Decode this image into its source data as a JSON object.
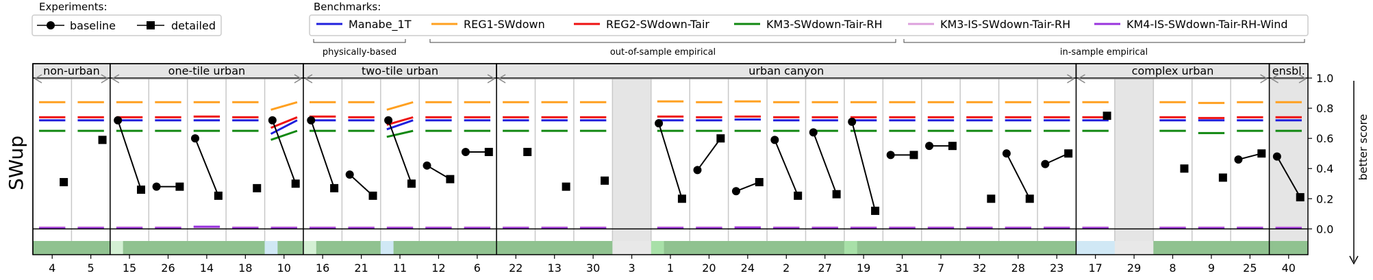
{
  "chart_data": {
    "type": "scatter",
    "ylabel": "SWup",
    "right_label": "better score",
    "ylim": [
      -0.08,
      1.0
    ],
    "yticks": [
      "1.0",
      "0.8",
      "0.6",
      "0.4",
      "0.2",
      "0.0"
    ],
    "ytick_values": [
      1.0,
      0.8,
      0.6,
      0.4,
      0.2,
      0.0
    ],
    "legend": {
      "experiments_title": "Experiments:",
      "experiments": [
        {
          "name": "baseline",
          "marker": "circle"
        },
        {
          "name": "detailed",
          "marker": "square"
        }
      ],
      "benchmarks_title": "Benchmarks:",
      "benchmarks": [
        {
          "name": "Manabe_1T",
          "color": "#1f1fdd"
        },
        {
          "name": "REG1-SWdown",
          "color": "#ffa020"
        },
        {
          "name": "REG2-SWdown-Tair",
          "color": "#ee1111"
        },
        {
          "name": "KM3-SWdown-Tair-RH",
          "color": "#118811"
        },
        {
          "name": "KM3-IS-SWdown-Tair-RH",
          "color": "#dda0dd"
        },
        {
          "name": "KM4-IS-SWdown-Tair-RH-Wind",
          "color": "#9933dd"
        }
      ],
      "benchmark_groups": [
        "physically-based",
        "out-of-sample empirical",
        "in-sample empirical"
      ]
    },
    "groups": [
      {
        "label": "non-urban",
        "start": 0,
        "end": 2
      },
      {
        "label": "one-tile urban",
        "start": 2,
        "end": 7
      },
      {
        "label": "two-tile urban",
        "start": 7,
        "end": 12
      },
      {
        "label": "urban canyon",
        "start": 12,
        "end": 27
      },
      {
        "label": "complex urban",
        "start": 27,
        "end": 32
      },
      {
        "label": "ensbl.",
        "start": 32,
        "end": 33
      }
    ],
    "sites": [
      {
        "id": "4",
        "baseline": null,
        "detailed": 0.31,
        "bench": [
          0.72,
          0.84,
          0.74,
          0.65,
          0.01,
          0.005
        ],
        "grey": false,
        "strip": [
          "#90c290"
        ]
      },
      {
        "id": "5",
        "baseline": null,
        "detailed": 0.59,
        "bench": [
          0.72,
          0.84,
          0.74,
          0.65,
          0.01,
          0.005
        ],
        "grey": false,
        "strip": [
          "#90c290"
        ]
      },
      {
        "id": "15",
        "baseline": 0.72,
        "detailed": 0.26,
        "bench": [
          0.72,
          0.84,
          0.74,
          0.65,
          0.01,
          0.005
        ],
        "grey": false,
        "strip": [
          "#d4f0d4",
          "#90c290",
          "#90c290"
        ]
      },
      {
        "id": "26",
        "baseline": 0.28,
        "detailed": 0.28,
        "bench": [
          0.72,
          0.84,
          0.74,
          0.65,
          0.01,
          0.005
        ],
        "grey": false,
        "strip": [
          "#90c290"
        ]
      },
      {
        "id": "14",
        "baseline": 0.6,
        "detailed": 0.22,
        "bench": [
          0.72,
          0.84,
          0.745,
          0.65,
          0.012,
          0.015
        ],
        "grey": false,
        "strip": [
          "#90c290"
        ]
      },
      {
        "id": "18",
        "baseline": null,
        "detailed": 0.27,
        "bench": [
          0.72,
          0.84,
          0.74,
          0.65,
          0.01,
          0.005
        ],
        "grey": false,
        "strip": [
          "#90c290"
        ]
      },
      {
        "id": "10",
        "baseline": 0.72,
        "detailed": 0.3,
        "bench": [
          [
            0.63,
            0.72
          ],
          [
            0.79,
            0.84
          ],
          [
            0.67,
            0.74
          ],
          [
            0.59,
            0.65
          ],
          0.01,
          0.005
        ],
        "grey": false,
        "strip": [
          "#d0e8f5",
          "#90c290",
          "#90c290"
        ]
      },
      {
        "id": "16",
        "baseline": 0.72,
        "detailed": 0.27,
        "bench": [
          0.72,
          0.84,
          0.745,
          0.65,
          0.01,
          0.005
        ],
        "grey": false,
        "strip": [
          "#d4f0d4",
          "#90c290",
          "#90c290"
        ]
      },
      {
        "id": "21",
        "baseline": 0.36,
        "detailed": 0.22,
        "bench": [
          0.72,
          0.84,
          0.74,
          0.65,
          0.01,
          0.005
        ],
        "grey": false,
        "strip": [
          "#90c290"
        ]
      },
      {
        "id": "11",
        "baseline": 0.72,
        "detailed": 0.3,
        "bench": [
          [
            0.66,
            0.72
          ],
          [
            0.79,
            0.84
          ],
          [
            0.69,
            0.74
          ],
          [
            0.61,
            0.65
          ],
          0.01,
          0.005
        ],
        "grey": false,
        "strip": [
          "#d0e8f5",
          "#90c290",
          "#90c290"
        ]
      },
      {
        "id": "12",
        "baseline": 0.42,
        "detailed": 0.33,
        "bench": [
          0.72,
          0.84,
          0.74,
          0.65,
          0.01,
          0.005
        ],
        "grey": false,
        "strip": [
          "#90c290"
        ]
      },
      {
        "id": "6",
        "baseline": 0.51,
        "detailed": 0.51,
        "bench": [
          0.72,
          0.84,
          0.74,
          0.65,
          0.01,
          0.005
        ],
        "grey": false,
        "strip": [
          "#90c290"
        ]
      },
      {
        "id": "22",
        "baseline": null,
        "detailed": 0.51,
        "bench": [
          0.72,
          0.84,
          0.74,
          0.65,
          0.01,
          0.005
        ],
        "grey": false,
        "strip": [
          "#90c290"
        ]
      },
      {
        "id": "13",
        "baseline": null,
        "detailed": 0.28,
        "bench": [
          0.72,
          0.84,
          0.74,
          0.65,
          0.01,
          0.005
        ],
        "grey": false,
        "strip": [
          "#90c290"
        ]
      },
      {
        "id": "30",
        "baseline": null,
        "detailed": 0.32,
        "bench": [
          0.72,
          0.84,
          0.74,
          0.65,
          0.01,
          0.005
        ],
        "grey": false,
        "strip": [
          "#90c290"
        ]
      },
      {
        "id": "3",
        "baseline": null,
        "detailed": null,
        "bench": null,
        "grey": true,
        "strip": [
          "#e8e8e8"
        ]
      },
      {
        "id": "1",
        "baseline": 0.7,
        "detailed": 0.2,
        "bench": [
          0.72,
          0.845,
          0.745,
          0.65,
          0.01,
          0.005
        ],
        "grey": false,
        "strip": [
          "#a8e0a8",
          "#90c290",
          "#90c290"
        ]
      },
      {
        "id": "20",
        "baseline": 0.39,
        "detailed": 0.6,
        "bench": [
          0.72,
          0.84,
          0.74,
          0.65,
          0.01,
          0.005
        ],
        "grey": false,
        "strip": [
          "#90c290"
        ]
      },
      {
        "id": "24",
        "baseline": 0.25,
        "detailed": 0.31,
        "bench": [
          0.725,
          0.845,
          0.745,
          0.65,
          0.012,
          0.008
        ],
        "grey": false,
        "strip": [
          "#90c290"
        ]
      },
      {
        "id": "2",
        "baseline": 0.59,
        "detailed": 0.22,
        "bench": [
          0.72,
          0.84,
          0.74,
          0.65,
          0.01,
          0.005
        ],
        "grey": false,
        "strip": [
          "#90c290"
        ]
      },
      {
        "id": "27",
        "baseline": 0.64,
        "detailed": 0.23,
        "bench": [
          0.72,
          0.84,
          0.74,
          0.65,
          0.01,
          0.005
        ],
        "grey": false,
        "strip": [
          "#90c290"
        ]
      },
      {
        "id": "19",
        "baseline": 0.71,
        "detailed": 0.12,
        "bench": [
          0.72,
          0.84,
          0.74,
          0.65,
          0.01,
          0.005
        ],
        "grey": false,
        "strip": [
          "#a8e0a8",
          "#90c290",
          "#90c290"
        ]
      },
      {
        "id": "31",
        "baseline": 0.49,
        "detailed": 0.49,
        "bench": [
          0.72,
          0.84,
          0.74,
          0.65,
          0.01,
          0.005
        ],
        "grey": false,
        "strip": [
          "#90c290"
        ]
      },
      {
        "id": "7",
        "baseline": 0.55,
        "detailed": 0.55,
        "bench": [
          0.72,
          0.84,
          0.74,
          0.65,
          0.01,
          0.005
        ],
        "grey": false,
        "strip": [
          "#90c290"
        ]
      },
      {
        "id": "32",
        "baseline": null,
        "detailed": 0.2,
        "bench": [
          0.72,
          0.84,
          0.74,
          0.65,
          0.01,
          0.005
        ],
        "grey": false,
        "strip": [
          "#90c290"
        ]
      },
      {
        "id": "28",
        "baseline": 0.5,
        "detailed": 0.2,
        "bench": [
          0.72,
          0.84,
          0.74,
          0.65,
          0.01,
          0.005
        ],
        "grey": false,
        "strip": [
          "#90c290"
        ]
      },
      {
        "id": "23",
        "baseline": 0.43,
        "detailed": 0.5,
        "bench": [
          0.72,
          0.84,
          0.74,
          0.65,
          0.01,
          0.005
        ],
        "grey": false,
        "strip": [
          "#90c290"
        ]
      },
      {
        "id": "17",
        "baseline": null,
        "detailed": 0.75,
        "bench": [
          0.72,
          0.84,
          0.74,
          0.65,
          0.01,
          0.005
        ],
        "grey": false,
        "strip": [
          "#d0e8f5"
        ]
      },
      {
        "id": "29",
        "baseline": null,
        "detailed": null,
        "bench": null,
        "grey": true,
        "strip": [
          "#e8e8e8"
        ]
      },
      {
        "id": "8",
        "baseline": null,
        "detailed": 0.4,
        "bench": [
          0.72,
          0.84,
          0.74,
          0.65,
          0.01,
          0.005
        ],
        "grey": false,
        "strip": [
          "#90c290"
        ]
      },
      {
        "id": "9",
        "baseline": null,
        "detailed": 0.34,
        "bench": [
          0.72,
          0.835,
          0.735,
          0.635,
          0.01,
          0.005
        ],
        "grey": false,
        "strip": [
          "#90c290"
        ]
      },
      {
        "id": "25",
        "baseline": 0.46,
        "detailed": 0.5,
        "bench": [
          0.72,
          0.84,
          0.74,
          0.65,
          0.01,
          0.005
        ],
        "grey": false,
        "strip": [
          "#90c290"
        ]
      },
      {
        "id": "40",
        "baseline": 0.48,
        "detailed": 0.21,
        "bench": [
          0.72,
          0.84,
          0.74,
          0.65,
          0.01,
          0.005
        ],
        "grey": true,
        "strip": [
          "#90c290"
        ]
      }
    ]
  }
}
